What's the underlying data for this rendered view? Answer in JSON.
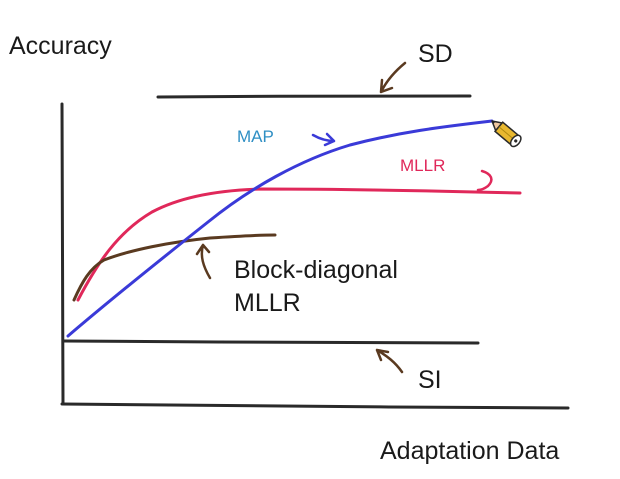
{
  "chart_data": {
    "type": "line",
    "ylabel": "Accuracy",
    "xlabel": "Adaptation Data",
    "curves": [
      {
        "key": "sd",
        "label": "SD",
        "color": "#2a2a2a"
      },
      {
        "key": "map",
        "label": "MAP",
        "color": "#3a3ad8"
      },
      {
        "key": "mllr",
        "label": "MLLR",
        "color": "#e0285a"
      },
      {
        "key": "block",
        "label": "Block-diagonal",
        "label_line2": "MLLR",
        "color": "#5a3a20"
      },
      {
        "key": "si",
        "label": "SI",
        "color": "#2a2a2a"
      }
    ],
    "label_colors": {
      "map": "#2f8fc4",
      "mllr": "#e0285a",
      "default": "#1a1a1a"
    }
  }
}
